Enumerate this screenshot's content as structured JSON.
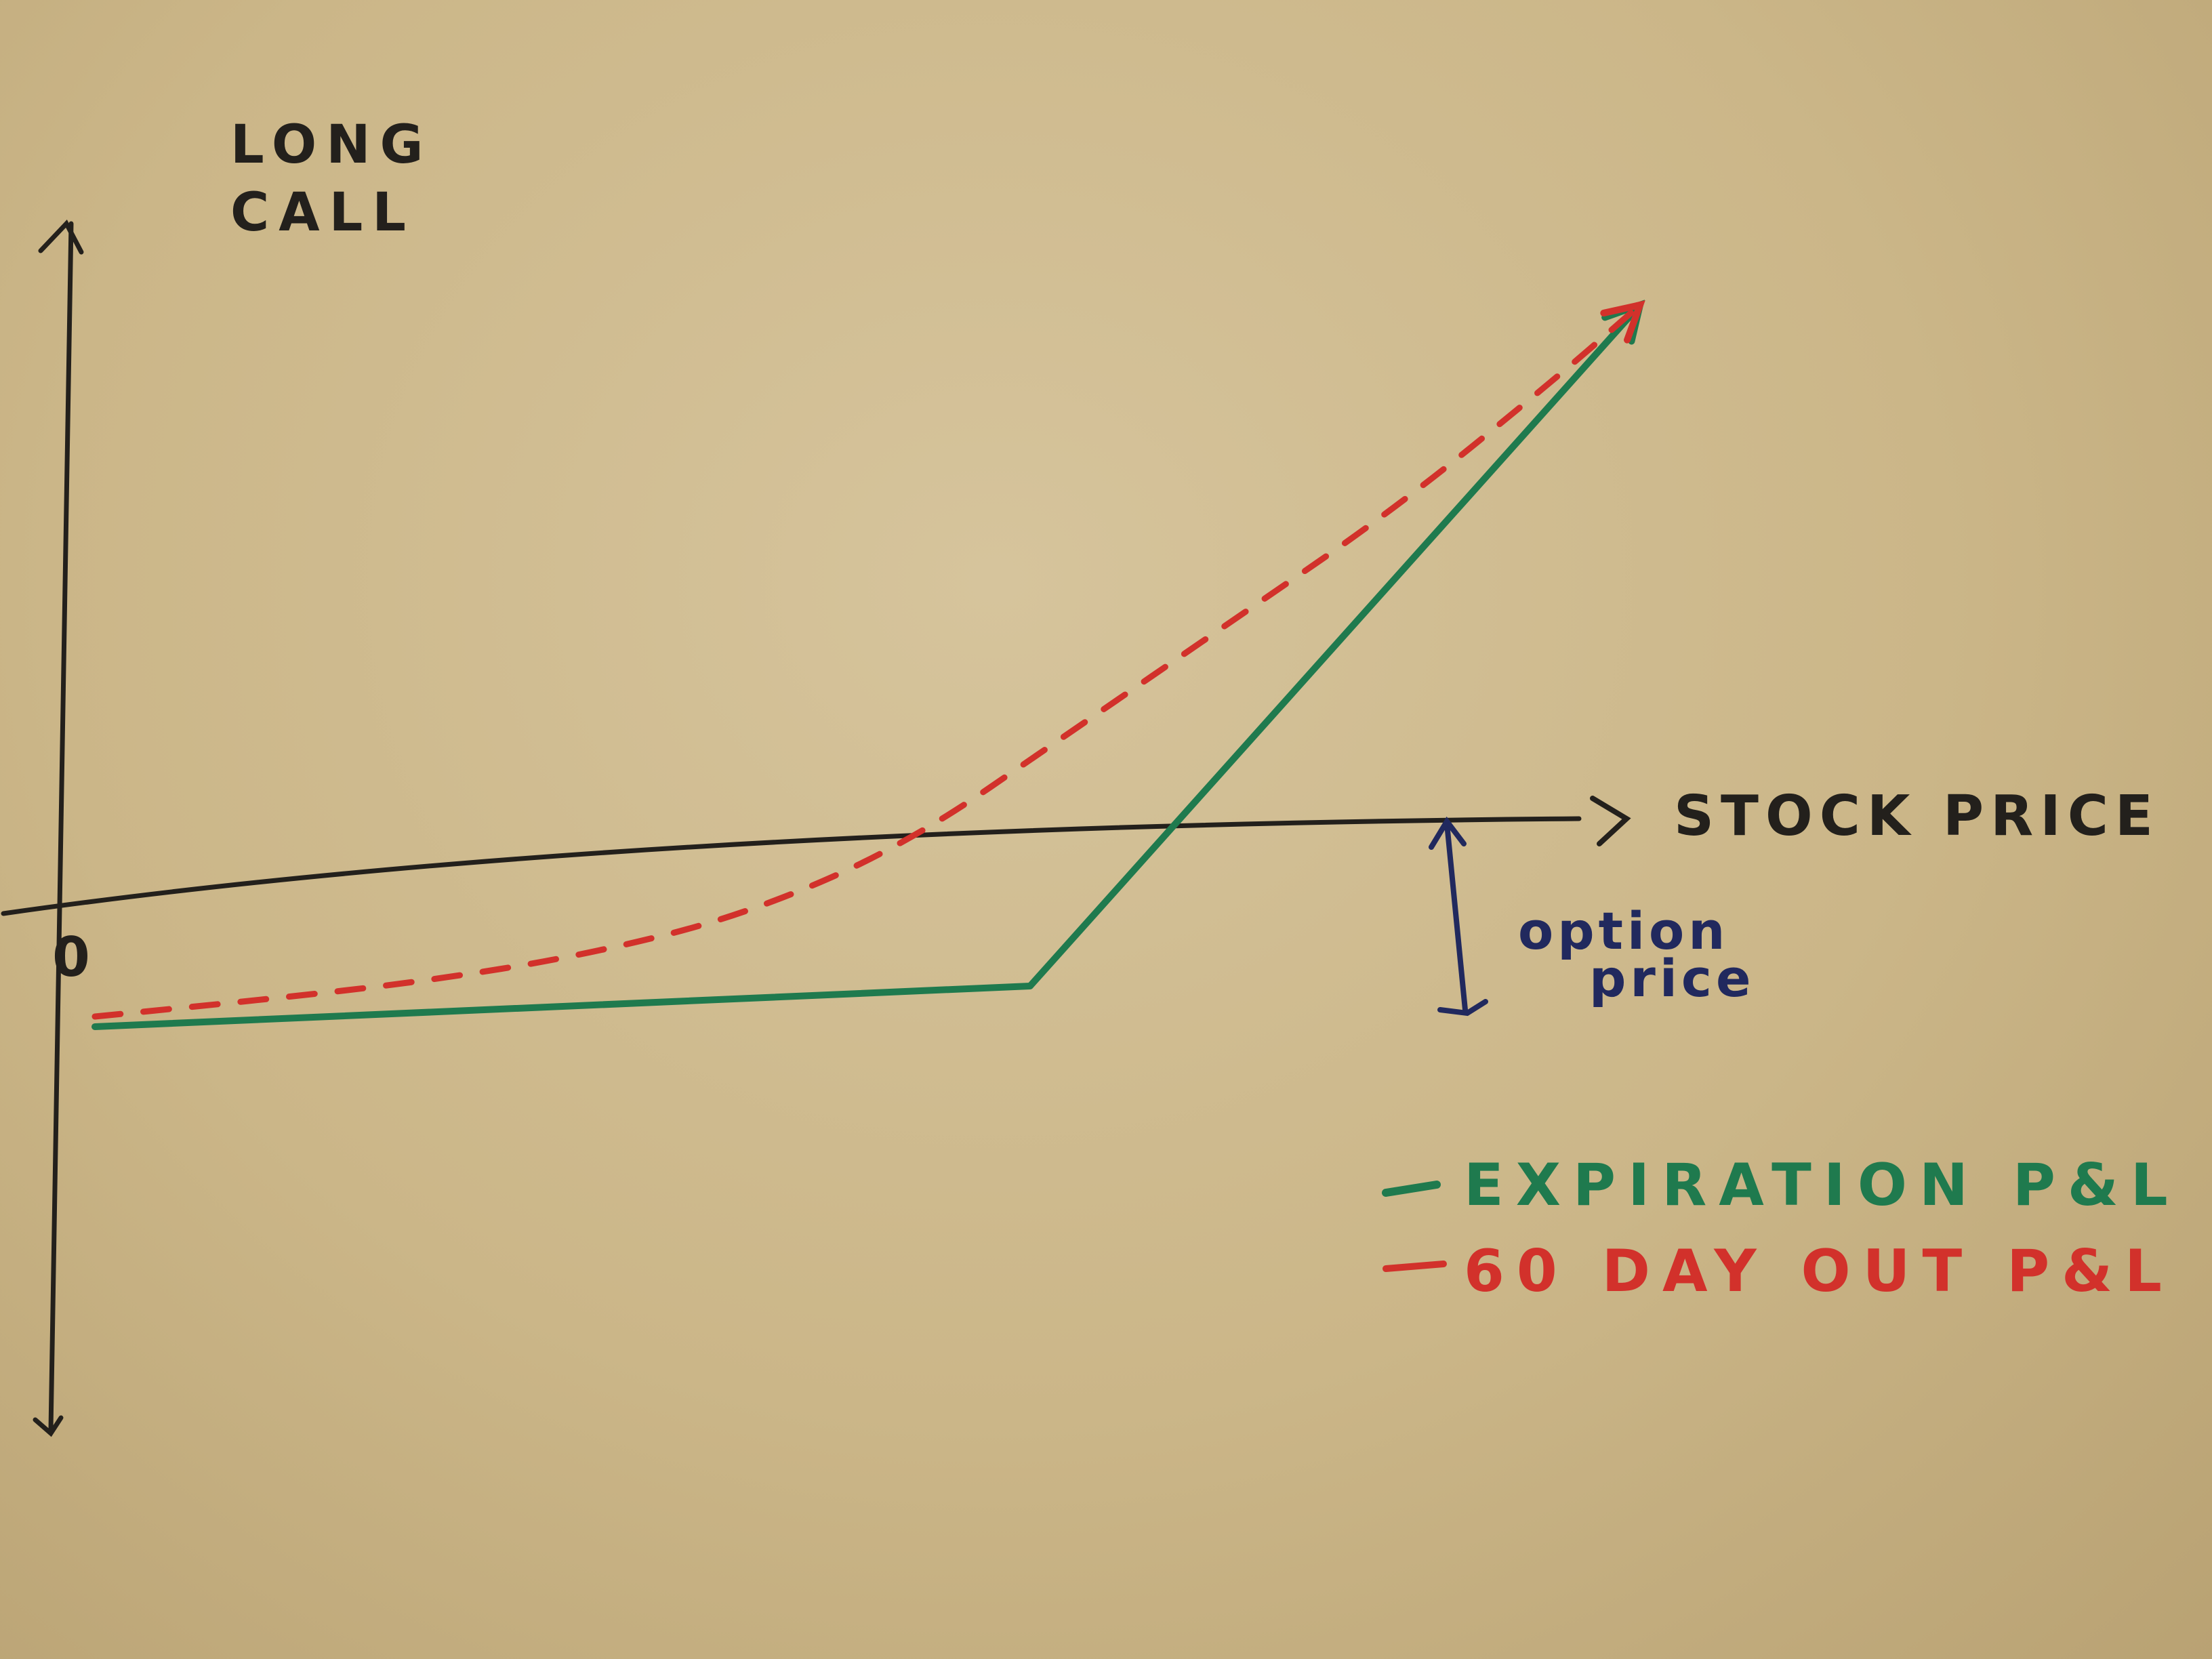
{
  "chart_data": {
    "type": "line",
    "title": "LONG CALL",
    "xlabel": "STOCK PRICE",
    "ylabel": "",
    "origin_label": "0",
    "annotation": "option price",
    "grid": false,
    "legend_position": "bottom-right",
    "strike": 0.46,
    "option_price": 1,
    "x": [
      0,
      0.46,
      0.76
    ],
    "series": [
      {
        "name": "EXPIRATION P&L",
        "color": "#1f7a4e",
        "style": "solid",
        "points": [
          [
            0,
            -1.0
          ],
          [
            0.46,
            -0.8
          ],
          [
            0.76,
            2.55
          ]
        ]
      },
      {
        "name": "60 DAY OUT P&L",
        "color": "#d2312b",
        "style": "dashed",
        "points": [
          [
            0,
            -0.95
          ],
          [
            0.08,
            -0.87
          ],
          [
            0.16,
            -0.78
          ],
          [
            0.24,
            -0.65
          ],
          [
            0.32,
            -0.45
          ],
          [
            0.4,
            -0.1
          ],
          [
            0.48,
            0.45
          ],
          [
            0.56,
            1.0
          ],
          [
            0.64,
            1.55
          ],
          [
            0.72,
            2.2
          ],
          [
            0.76,
            2.55
          ]
        ]
      }
    ]
  },
  "colors": {
    "ink": "#23201c",
    "annotation": "#21295e",
    "expiration": "#1f7a4e",
    "sixty_day": "#d2312b"
  }
}
